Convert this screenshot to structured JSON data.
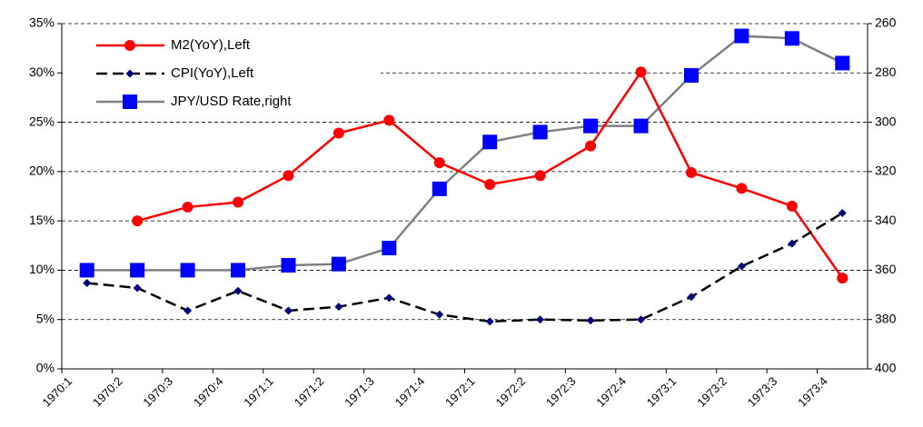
{
  "chart_data": {
    "type": "line",
    "categories": [
      "1970:1",
      "1970:2",
      "1970:3",
      "1970:4",
      "1971:1",
      "1971:2",
      "1971:3",
      "1971:4",
      "1972:1",
      "1972:2",
      "1972:3",
      "1972:4",
      "1973:1",
      "1973:2",
      "1973:3",
      "1973:4"
    ],
    "series": [
      {
        "name": "M2(YoY),Left",
        "color": "#ff0000",
        "marker_color": "#ff0000",
        "marker": "circle",
        "dash": false,
        "values": [
          null,
          15.0,
          16.4,
          16.9,
          19.6,
          23.9,
          25.2,
          20.9,
          18.7,
          19.6,
          22.6,
          30.1,
          19.9,
          18.3,
          16.5,
          9.2
        ]
      },
      {
        "name": "CPI(YoY),Left",
        "color": "#000000",
        "marker_color": "#000080",
        "marker": "diamond",
        "dash": true,
        "values": [
          8.7,
          8.2,
          5.9,
          7.9,
          5.9,
          6.3,
          7.2,
          5.5,
          4.8,
          5.0,
          4.9,
          5.0,
          7.3,
          10.4,
          12.7,
          15.8
        ]
      },
      {
        "name": "JPY/USD Rate,right",
        "color": "#808080",
        "marker_color": "#0000ff",
        "marker": "square",
        "dash": false,
        "axis": "y2",
        "values": [
          360,
          360,
          360,
          360,
          358,
          357.5,
          351,
          327,
          308,
          304,
          301.5,
          301.5,
          281,
          265,
          266,
          276
        ]
      }
    ],
    "ylim": [
      0,
      35
    ],
    "yticks": [
      {
        "value": 0,
        "label": "0%"
      },
      {
        "value": 5,
        "label": "5%"
      },
      {
        "value": 10,
        "label": "10%"
      },
      {
        "value": 15,
        "label": "15%"
      },
      {
        "value": 20,
        "label": "20%"
      },
      {
        "value": 25,
        "label": "25%"
      },
      {
        "value": 30,
        "label": "30%"
      },
      {
        "value": 35,
        "label": "35%"
      }
    ],
    "y2lim": [
      400,
      260
    ],
    "y2ticks": [
      400,
      380,
      360,
      340,
      320,
      300,
      280,
      260
    ],
    "grid": true,
    "legend": "upper left"
  }
}
